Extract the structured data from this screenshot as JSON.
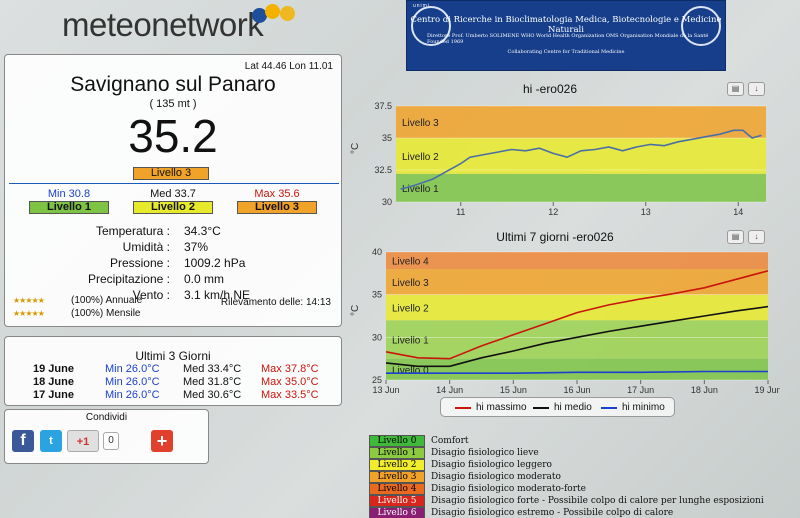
{
  "brand": {
    "name": "meteonetwork"
  },
  "station": {
    "coords": "Lat 44.46 Lon 11.01",
    "name": "Savignano sul Panaro",
    "altitude": "( 135 mt )",
    "heat_index": "35.2",
    "level_label": "Livello 3",
    "min": {
      "label": "Min 30.8",
      "level": "Livello 1"
    },
    "med": {
      "label": "Med 33.7",
      "level": "Livello 2"
    },
    "max": {
      "label": "Max 35.6",
      "level": "Livello 3"
    },
    "measures": [
      {
        "k": "Temperatura :",
        "v": "34.3°C"
      },
      {
        "k": "Umidità :",
        "v": "37%"
      },
      {
        "k": "Pressione :",
        "v": "1009.2 hPa"
      },
      {
        "k": "Precipitazione :",
        "v": "0.0 mm"
      },
      {
        "k": "Vento :",
        "v": "3.1 km/h NE"
      }
    ],
    "rating_annual": "(100%) Annuale",
    "rating_monthly": "(100%) Mensile",
    "detection": "Rilevamento delle: 14:13"
  },
  "history": {
    "title": "Ultimi 3 Giorni",
    "rows": [
      {
        "date": "19 June",
        "min": "Min 26.0°C",
        "med": "Med 33.4°C",
        "max": "Max 37.8°C"
      },
      {
        "date": "18 June",
        "min": "Min 26.0°C",
        "med": "Med 31.8°C",
        "max": "Max 35.0°C"
      },
      {
        "date": "17 June",
        "min": "Min 26.0°C",
        "med": "Med 30.6°C",
        "max": "Max 33.5°C"
      }
    ]
  },
  "share": {
    "title": "Condividi",
    "gplus": "+1",
    "count": "0"
  },
  "banner": {
    "tag": "unimi",
    "line1": "Centro di Ricerche in Bioclimatologia Medica, Biotecnologie e Medicine Naturali",
    "line2": "Direttore Prof. Umberto SOLIMENE        WHO World Health Organization   OMS Organisation Mondiale de la Santé   Founded 1969",
    "line3": "Collaborating Centre for Traditional Medicine"
  },
  "chart_data": [
    {
      "type": "line",
      "title": "hi -ero026",
      "ylabel": "°C",
      "ylim": [
        30,
        37.5
      ],
      "yticks": [
        "30",
        "32.5",
        "35",
        "37.5"
      ],
      "xticks": [
        "11",
        "12",
        "13",
        "14"
      ],
      "xlim": [
        10.3,
        14.3
      ],
      "bands": [
        {
          "label": "Livello 1",
          "from": 30,
          "to": 32.2,
          "color": "#7dc445"
        },
        {
          "label": "Livello 2",
          "from": 32.2,
          "to": 35,
          "color": "#e7ea2a"
        },
        {
          "label": "Livello 3",
          "from": 35,
          "to": 37.5,
          "color": "#f1a229"
        }
      ],
      "series": [
        {
          "color": "#4b6fa5",
          "x": [
            10.35,
            10.5,
            10.7,
            10.9,
            11.0,
            11.1,
            11.25,
            11.4,
            11.55,
            11.7,
            11.85,
            12.0,
            12.15,
            12.3,
            12.45,
            12.6,
            12.75,
            12.9,
            13.05,
            13.2,
            13.35,
            13.5,
            13.65,
            13.8,
            13.95,
            14.05,
            14.15,
            14.25
          ],
          "y": [
            31.0,
            31.3,
            31.8,
            32.6,
            33.0,
            33.5,
            33.7,
            33.9,
            34.1,
            34.0,
            34.2,
            33.8,
            33.5,
            34.0,
            34.1,
            34.3,
            34.0,
            34.3,
            34.5,
            34.4,
            34.7,
            34.9,
            35.1,
            35.3,
            35.6,
            35.6,
            35.0,
            35.2
          ]
        }
      ]
    },
    {
      "type": "line",
      "title": "Ultimi 7 giorni -ero026",
      "ylabel": "°C",
      "ylim": [
        25,
        40
      ],
      "yticks": [
        "25",
        "30",
        "35",
        "40"
      ],
      "xticks": [
        "13 Jun",
        "14 Jun",
        "15 Jun",
        "16 Jun",
        "17 Jun",
        "18 Jun",
        "19 Jun"
      ],
      "bands": [
        {
          "label": "Livello 0",
          "from": 25,
          "to": 27.5,
          "color": "#7dc445"
        },
        {
          "label": "Livello 1",
          "from": 27.5,
          "to": 32,
          "color": "#9bd24d"
        },
        {
          "label": "Livello 2",
          "from": 32,
          "to": 35,
          "color": "#e7ea2a"
        },
        {
          "label": "Livello 3",
          "from": 35,
          "to": 38,
          "color": "#f1a229"
        },
        {
          "label": "Livello 4",
          "from": 38,
          "to": 40,
          "color": "#ee8638"
        }
      ],
      "series": [
        {
          "name": "hi massimo",
          "color": "#c8160c",
          "x": [
            0,
            0.5,
            1,
            1.5,
            2,
            2.5,
            3,
            3.5,
            4,
            4.5,
            5,
            5.5,
            6
          ],
          "y": [
            28.3,
            27.6,
            27.5,
            29.0,
            30.3,
            31.6,
            32.9,
            33.8,
            34.5,
            35.1,
            35.8,
            36.8,
            37.8
          ]
        },
        {
          "name": "hi medio",
          "color": "#111111",
          "x": [
            0,
            0.5,
            1,
            1.5,
            2,
            2.5,
            3,
            3.5,
            4,
            4.5,
            5,
            5.5,
            6
          ],
          "y": [
            27.0,
            26.6,
            26.6,
            27.6,
            28.4,
            29.3,
            30.0,
            30.7,
            31.3,
            31.9,
            32.5,
            33.1,
            33.6
          ]
        },
        {
          "name": "hi minimo",
          "color": "#1b3fcf",
          "x": [
            0,
            1,
            2,
            3,
            4,
            5,
            6
          ],
          "y": [
            25.8,
            25.8,
            25.8,
            25.9,
            25.9,
            26.0,
            26.0
          ]
        }
      ]
    }
  ],
  "levels": [
    {
      "label": "Livello 0",
      "desc": "Comfort",
      "color": "#3fb93a",
      "text": "#000"
    },
    {
      "label": "Livello 1",
      "desc": "Disagio fisiologico lieve",
      "color": "#8ccb3f",
      "text": "#000"
    },
    {
      "label": "Livello 2",
      "desc": "Disagio fisiologico leggero",
      "color": "#f0ee2c",
      "text": "#000"
    },
    {
      "label": "Livello 3",
      "desc": "Disagio fisiologico moderato",
      "color": "#f1a229",
      "text": "#000"
    },
    {
      "label": "Livello 4",
      "desc": "Disagio fisiologico moderato-forte",
      "color": "#e96a1d",
      "text": "#000"
    },
    {
      "label": "Livello 5",
      "desc": "Disagio fisiologico forte - Possibile colpo di calore per lunghe esposizioni",
      "color": "#d8261c",
      "text": "#fff"
    },
    {
      "label": "Livello 6",
      "desc": "Disagio fisiologico estremo - Possibile colpo di calore",
      "color": "#8a1e72",
      "text": "#fff"
    }
  ],
  "colors": {
    "level1": "#7dc445",
    "level2": "#e7ea2a",
    "level3": "#f1a229",
    "min_text": "#1b3fcf",
    "max_text": "#c8160c"
  }
}
